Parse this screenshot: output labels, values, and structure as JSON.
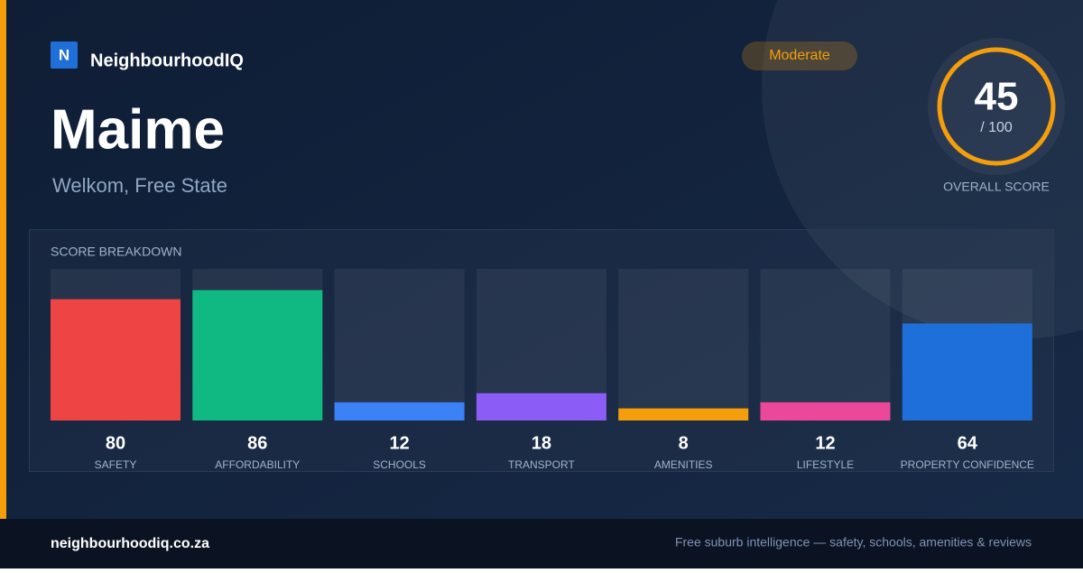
{
  "brand": {
    "logo": "N",
    "name": "NeighbourhoodIQ"
  },
  "title": "Maime",
  "subtitle": "Welkom, Free State",
  "badge": "Moderate",
  "score": {
    "value": 45,
    "max": {
      "value": 100,
      "label": "/ 100"
    },
    "caption": "OVERALL SCORE"
  },
  "breakdown": {
    "title": "SCORE BREAKDOWN",
    "items": [
      {
        "label": "SAFETY",
        "value": 80,
        "color": "#ef4444"
      },
      {
        "label": "AFFORDABILITY",
        "value": 86,
        "color": "#10b981"
      },
      {
        "label": "SCHOOLS",
        "value": 12,
        "color": "#3b82f6"
      },
      {
        "label": "TRANSPORT",
        "value": 18,
        "color": "#8b5cf6"
      },
      {
        "label": "AMENITIES",
        "value": 8,
        "color": "#f59e0b"
      },
      {
        "label": "LIFESTYLE",
        "value": 12,
        "color": "#ec4899"
      },
      {
        "label": "PROPERTY CONFIDENCE",
        "value": 64,
        "color": "#1e6fd9"
      }
    ]
  },
  "footer": {
    "url": "neighbourhoodiq.co.za",
    "tagline": "Free suburb intelligence — safety, schools, amenities & reviews"
  }
}
